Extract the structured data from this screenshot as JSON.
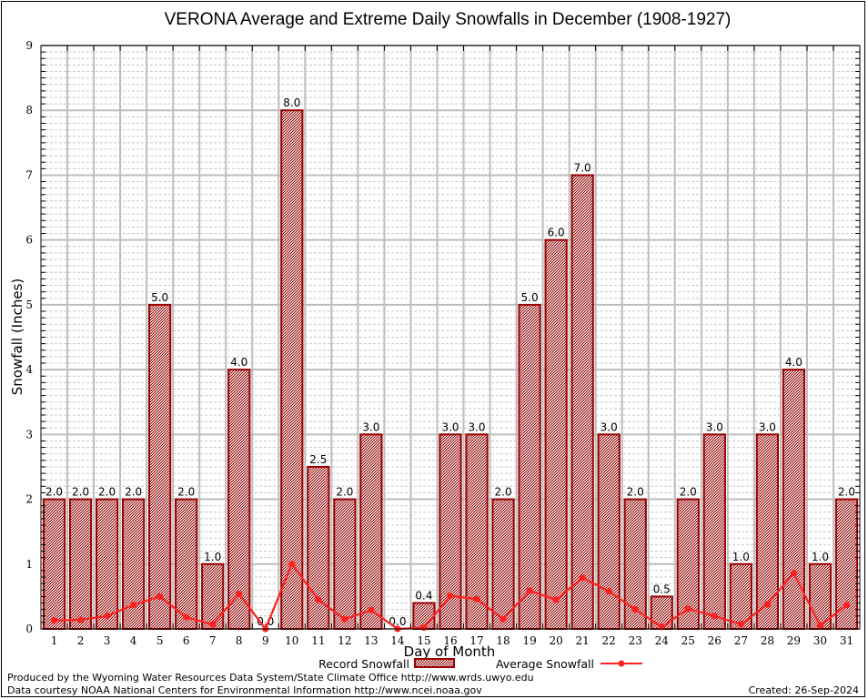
{
  "chart_data": {
    "type": "bar",
    "title": "VERONA Average and Extreme Daily Snowfalls in December (1908-1927)",
    "xlabel": "Day of Month",
    "ylabel": "Snowfall (Inches)",
    "ylim": [
      0,
      9
    ],
    "yticks": [
      0,
      1,
      2,
      3,
      4,
      5,
      6,
      7,
      8,
      9
    ],
    "grid": true,
    "categories": [
      "1",
      "2",
      "3",
      "4",
      "5",
      "6",
      "7",
      "8",
      "9",
      "10",
      "11",
      "12",
      "13",
      "14",
      "15",
      "16",
      "17",
      "18",
      "19",
      "20",
      "21",
      "22",
      "23",
      "24",
      "25",
      "26",
      "27",
      "28",
      "29",
      "30",
      "31"
    ],
    "series": [
      {
        "name": "Record Snowfall",
        "type": "bar",
        "color": "#990000",
        "values": [
          2.0,
          2.0,
          2.0,
          2.0,
          5.0,
          2.0,
          1.0,
          4.0,
          0.0,
          8.0,
          2.5,
          2.0,
          3.0,
          0.0,
          0.4,
          3.0,
          3.0,
          2.0,
          5.0,
          6.0,
          7.0,
          3.0,
          2.0,
          0.5,
          2.0,
          3.0,
          1.0,
          3.0,
          4.0,
          1.0,
          2.0
        ],
        "labels": [
          "2.0",
          "2.0",
          "2.0",
          "2.0",
          "5.0",
          "2.0",
          "1.0",
          "4.0",
          "0.0",
          "8.0",
          "2.5",
          "2.0",
          "3.0",
          "0.0",
          "0.4",
          "3.0",
          "3.0",
          "2.0",
          "5.0",
          "6.0",
          "7.0",
          "3.0",
          "2.0",
          "0.5",
          "2.0",
          "3.0",
          "1.0",
          "3.0",
          "4.0",
          "1.0",
          "2.0"
        ]
      },
      {
        "name": "Average Snowfall",
        "type": "line",
        "color": "#ff2020",
        "values": [
          0.13,
          0.14,
          0.2,
          0.37,
          0.5,
          0.18,
          0.07,
          0.54,
          0.0,
          1.0,
          0.45,
          0.15,
          0.29,
          0.0,
          0.02,
          0.51,
          0.46,
          0.15,
          0.59,
          0.45,
          0.79,
          0.58,
          0.3,
          0.03,
          0.31,
          0.2,
          0.07,
          0.38,
          0.86,
          0.05,
          0.37
        ]
      }
    ],
    "legend_position": "bottom-center"
  },
  "footer": {
    "line1": "Produced by the Wyoming Water Resources Data System/State Climate Office http://www.wrds.uwyo.edu",
    "line2": "Data courtesy NOAA National Centers for Environmental Information http://www.ncei.noaa.gov",
    "created": "Created: 26-Sep-2024"
  }
}
